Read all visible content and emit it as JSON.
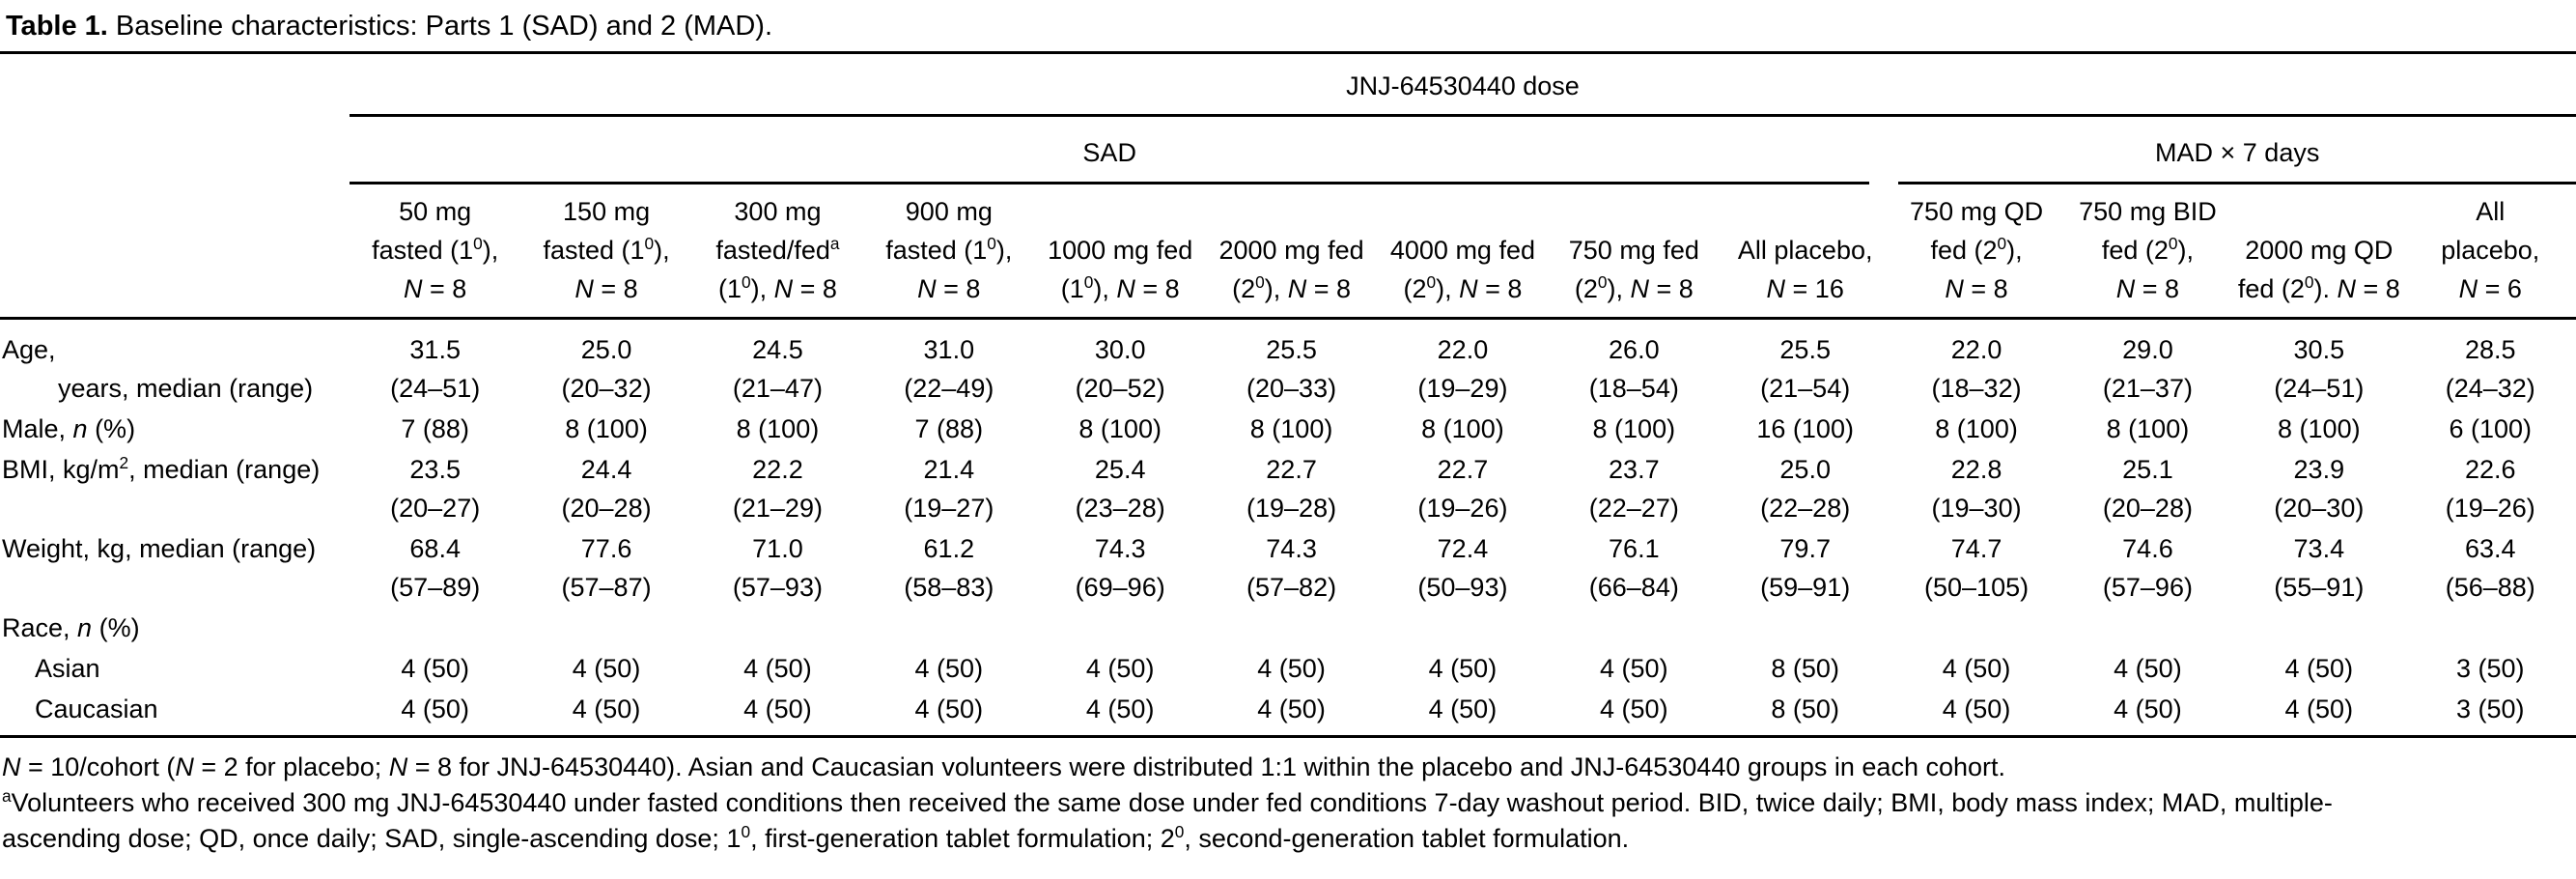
{
  "title": {
    "label": "Table 1.",
    "text": "Baseline characteristics: Parts 1 (SAD) and 2 (MAD)."
  },
  "table": {
    "group_header": "JNJ-64530440 dose",
    "sections": {
      "sad": "SAD",
      "mad": "MAD × 7 days"
    },
    "columns": [
      {
        "lines": [
          "50 mg",
          "fasted (1^{0}),",
          "*N* = 8"
        ]
      },
      {
        "lines": [
          "150 mg",
          "fasted (1^{0}),",
          "*N* = 8"
        ]
      },
      {
        "lines": [
          "300 mg",
          "fasted/fed^{a}",
          "(1^{0}), *N* = 8"
        ]
      },
      {
        "lines": [
          "900 mg",
          "fasted (1^{0}),",
          "*N* = 8"
        ]
      },
      {
        "lines": [
          "1000 mg fed",
          "(1^{0}), *N* = 8"
        ]
      },
      {
        "lines": [
          "2000 mg fed",
          "(2^{0}), *N* = 8"
        ]
      },
      {
        "lines": [
          "4000 mg fed",
          "(2^{0}), *N* = 8"
        ]
      },
      {
        "lines": [
          "750 mg fed",
          "(2^{0}), *N* = 8"
        ]
      },
      {
        "lines": [
          "All placebo,",
          "*N* = 16"
        ]
      },
      {
        "lines": [
          "750 mg QD",
          "fed (2^{0}),",
          "*N* = 8"
        ]
      },
      {
        "lines": [
          "750 mg BID",
          "fed (2^{0}),",
          "*N* = 8"
        ]
      },
      {
        "lines": [
          "2000 mg QD",
          "fed (2^{0}). *N* = 8"
        ]
      },
      {
        "lines": [
          "All",
          "placebo,",
          "*N* = 6"
        ]
      }
    ],
    "rows": [
      {
        "label1": "Age,",
        "label2": "years, median (range)",
        "cells": [
          {
            "v": "31.5",
            "r": "(24–51)"
          },
          {
            "v": "25.0",
            "r": "(20–32)"
          },
          {
            "v": "24.5",
            "r": "(21–47)"
          },
          {
            "v": "31.0",
            "r": "(22–49)"
          },
          {
            "v": "30.0",
            "r": "(20–52)"
          },
          {
            "v": "25.5",
            "r": "(20–33)"
          },
          {
            "v": "22.0",
            "r": "(19–29)"
          },
          {
            "v": "26.0",
            "r": "(18–54)"
          },
          {
            "v": "25.5",
            "r": "(21–54)"
          },
          {
            "v": "22.0",
            "r": "(18–32)"
          },
          {
            "v": "29.0",
            "r": "(21–37)"
          },
          {
            "v": "30.5",
            "r": "(24–51)"
          },
          {
            "v": "28.5",
            "r": "(24–32)"
          }
        ]
      },
      {
        "label1": "Male, *n* (%)",
        "cells": [
          {
            "v": "7 (88)"
          },
          {
            "v": "8 (100)"
          },
          {
            "v": "8 (100)"
          },
          {
            "v": "7 (88)"
          },
          {
            "v": "8 (100)"
          },
          {
            "v": "8 (100)"
          },
          {
            "v": "8 (100)"
          },
          {
            "v": "8 (100)"
          },
          {
            "v": "16 (100)"
          },
          {
            "v": "8 (100)"
          },
          {
            "v": "8 (100)"
          },
          {
            "v": "8 (100)"
          },
          {
            "v": "6 (100)"
          }
        ]
      },
      {
        "label1": "BMI, kg/m^{2}, median (range)",
        "cells": [
          {
            "v": "23.5",
            "r": "(20–27)"
          },
          {
            "v": "24.4",
            "r": "(20–28)"
          },
          {
            "v": "22.2",
            "r": "(21–29)"
          },
          {
            "v": "21.4",
            "r": "(19–27)"
          },
          {
            "v": "25.4",
            "r": "(23–28)"
          },
          {
            "v": "22.7",
            "r": "(19–28)"
          },
          {
            "v": "22.7",
            "r": "(19–26)"
          },
          {
            "v": "23.7",
            "r": "(22–27)"
          },
          {
            "v": "25.0",
            "r": "(22–28)"
          },
          {
            "v": "22.8",
            "r": "(19–30)"
          },
          {
            "v": "25.1",
            "r": "(20–28)"
          },
          {
            "v": "23.9",
            "r": "(20–30)"
          },
          {
            "v": "22.6",
            "r": "(19–26)"
          }
        ]
      },
      {
        "label1": "Weight, kg, median (range)",
        "cells": [
          {
            "v": "68.4",
            "r": "(57–89)"
          },
          {
            "v": "77.6",
            "r": "(57–87)"
          },
          {
            "v": "71.0",
            "r": "(57–93)"
          },
          {
            "v": "61.2",
            "r": "(58–83)"
          },
          {
            "v": "74.3",
            "r": "(69–96)"
          },
          {
            "v": "74.3",
            "r": "(57–82)"
          },
          {
            "v": "72.4",
            "r": "(50–93)"
          },
          {
            "v": "76.1",
            "r": "(66–84)"
          },
          {
            "v": "79.7",
            "r": "(59–91)"
          },
          {
            "v": "74.7",
            "r": "(50–105)"
          },
          {
            "v": "74.6",
            "r": "(57–96)"
          },
          {
            "v": "73.4",
            "r": "(55–91)"
          },
          {
            "v": "63.4",
            "r": "(56–88)"
          }
        ]
      },
      {
        "label1": "Race, *n* (%)",
        "cells": []
      },
      {
        "label1": "Asian",
        "cells": [
          {
            "v": "4 (50)"
          },
          {
            "v": "4 (50)"
          },
          {
            "v": "4 (50)"
          },
          {
            "v": "4 (50)"
          },
          {
            "v": "4 (50)"
          },
          {
            "v": "4 (50)"
          },
          {
            "v": "4 (50)"
          },
          {
            "v": "4 (50)"
          },
          {
            "v": "8 (50)"
          },
          {
            "v": "4 (50)"
          },
          {
            "v": "4 (50)"
          },
          {
            "v": "4 (50)"
          },
          {
            "v": "3 (50)"
          }
        ]
      },
      {
        "label1": "Caucasian",
        "cells": [
          {
            "v": "4 (50)"
          },
          {
            "v": "4 (50)"
          },
          {
            "v": "4 (50)"
          },
          {
            "v": "4 (50)"
          },
          {
            "v": "4 (50)"
          },
          {
            "v": "4 (50)"
          },
          {
            "v": "4 (50)"
          },
          {
            "v": "4 (50)"
          },
          {
            "v": "8 (50)"
          },
          {
            "v": "4 (50)"
          },
          {
            "v": "4 (50)"
          },
          {
            "v": "4 (50)"
          },
          {
            "v": "3 (50)"
          }
        ]
      }
    ]
  },
  "footnotes": [
    "*N* = 10/cohort (*N* = 2 for placebo; *N* = 8 for JNJ-64530440). Asian and Caucasian volunteers were distributed 1:1 within the placebo and JNJ-64530440 groups in each cohort.",
    "^{a}Volunteers who received 300 mg JNJ-64530440 under fasted conditions then received the same dose under fed conditions 7-day washout period. BID, twice daily; BMI, body mass index; MAD, multiple-",
    "ascending dose; QD, once daily; SAD, single-ascending dose; 1^{0}, first-generation tablet formulation; 2^{0}, second-generation tablet formulation."
  ]
}
